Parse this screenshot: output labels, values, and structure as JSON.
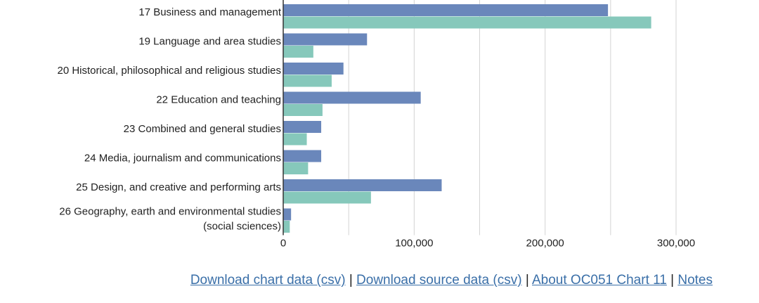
{
  "chart_data": {
    "type": "bar",
    "orientation": "horizontal",
    "categories": [
      [
        "17 Business and management"
      ],
      [
        "19 Language and area studies"
      ],
      [
        "20 Historical, philosophical and religious studies"
      ],
      [
        "22 Education and teaching"
      ],
      [
        "23 Combined and general studies"
      ],
      [
        "24 Media, journalism and communications"
      ],
      [
        "25 Design, and creative and performing arts"
      ],
      [
        "26 Geography, earth and environmental studies",
        "(social sciences)"
      ]
    ],
    "series": [
      {
        "color": "#6a87bb",
        "values": [
          248000,
          64000,
          46000,
          105000,
          29000,
          29000,
          121000,
          6000
        ]
      },
      {
        "color": "#86c8bb",
        "values": [
          281000,
          23000,
          37000,
          30000,
          18000,
          19000,
          67000,
          5000
        ]
      }
    ],
    "xlim": [
      0,
      330000
    ],
    "xticks": [
      0,
      100000,
      200000,
      300000
    ],
    "xtick_labels": [
      "0",
      "100,000",
      "200,000",
      "300,000"
    ],
    "grid": "vertical",
    "gridline_color": "#d3d3d3"
  },
  "links": {
    "download_chart": "Download chart data (csv)",
    "download_source": "Download source data (csv)",
    "about": "About OC051 Chart 11",
    "notes": "Notes",
    "separator": "|"
  }
}
